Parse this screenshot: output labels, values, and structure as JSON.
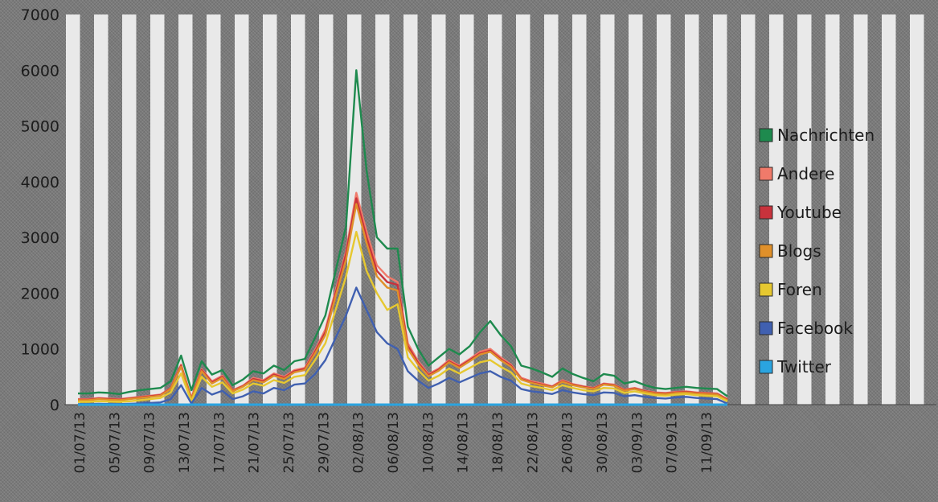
{
  "chart_data": {
    "type": "line",
    "ylim": [
      0,
      7000
    ],
    "yticks": [
      0,
      1000,
      2000,
      3000,
      4000,
      5000,
      6000,
      7000
    ],
    "grid": "none",
    "legend_position": "right",
    "x_tick_labels": [
      "01/07/13",
      "05/07/13",
      "09/07/13",
      "13/07/13",
      "17/07/13",
      "21/07/13",
      "25/07/13",
      "29/07/13",
      "02/08/13",
      "06/08/13",
      "10/08/13",
      "14/08/13",
      "18/08/13",
      "22/08/13",
      "26/08/13",
      "30/08/13",
      "03/09/13",
      "07/09/13",
      "11/09/13"
    ],
    "series": [
      {
        "name": "Nachrichten",
        "color": "#1e8a4e",
        "values": [
          200,
          200,
          220,
          210,
          190,
          230,
          260,
          280,
          300,
          420,
          880,
          260,
          780,
          540,
          620,
          350,
          450,
          600,
          560,
          700,
          620,
          780,
          820,
          1200,
          1600,
          2400,
          3200,
          6000,
          4200,
          3000,
          2800,
          2800,
          1400,
          1000,
          700,
          850,
          1000,
          900,
          1050,
          1300,
          1500,
          1250,
          1050,
          700,
          650,
          580,
          500,
          650,
          550,
          480,
          420,
          550,
          520,
          380,
          420,
          350,
          300,
          280,
          300,
          320,
          300,
          290,
          280,
          150
        ]
      },
      {
        "name": "Andere",
        "color": "#f07a6a",
        "values": [
          100,
          100,
          120,
          110,
          100,
          120,
          140,
          160,
          180,
          300,
          720,
          120,
          640,
          420,
          520,
          260,
          340,
          480,
          440,
          560,
          500,
          620,
          660,
          980,
          1350,
          2050,
          2750,
          3800,
          3100,
          2500,
          2300,
          2200,
          1100,
          780,
          550,
          650,
          800,
          700,
          820,
          950,
          1000,
          850,
          720,
          480,
          420,
          380,
          330,
          440,
          370,
          330,
          300,
          380,
          360,
          270,
          300,
          250,
          220,
          210,
          230,
          240,
          220,
          210,
          200,
          100
        ]
      },
      {
        "name": "Youtube",
        "color": "#c8323c",
        "values": [
          90,
          90,
          110,
          100,
          90,
          110,
          130,
          150,
          170,
          290,
          700,
          110,
          620,
          400,
          500,
          250,
          330,
          460,
          420,
          540,
          480,
          600,
          640,
          950,
          1300,
          2000,
          2700,
          3700,
          3000,
          2400,
          2200,
          2150,
          1050,
          750,
          530,
          630,
          780,
          680,
          800,
          920,
          970,
          820,
          700,
          460,
          400,
          360,
          320,
          420,
          360,
          320,
          290,
          370,
          350,
          260,
          290,
          240,
          210,
          200,
          220,
          230,
          210,
          200,
          190,
          90
        ]
      },
      {
        "name": "Blogs",
        "color": "#e0902a",
        "values": [
          80,
          80,
          100,
          90,
          80,
          100,
          120,
          140,
          160,
          280,
          680,
          100,
          600,
          380,
          480,
          240,
          320,
          440,
          400,
          520,
          460,
          580,
          620,
          920,
          1250,
          1950,
          2600,
          3600,
          2900,
          2300,
          2100,
          2050,
          1000,
          720,
          510,
          610,
          760,
          660,
          780,
          900,
          950,
          800,
          680,
          450,
          390,
          350,
          310,
          410,
          350,
          310,
          280,
          360,
          340,
          250,
          280,
          230,
          200,
          190,
          210,
          220,
          200,
          190,
          180,
          80
        ]
      },
      {
        "name": "Foren",
        "color": "#e6c830",
        "values": [
          50,
          50,
          60,
          55,
          50,
          60,
          80,
          100,
          120,
          220,
          560,
          60,
          500,
          320,
          400,
          200,
          270,
          380,
          340,
          440,
          390,
          500,
          530,
          800,
          1100,
          1700,
          2300,
          3100,
          2400,
          2000,
          1700,
          1800,
          850,
          620,
          430,
          520,
          650,
          560,
          660,
          760,
          800,
          680,
          580,
          380,
          330,
          300,
          260,
          350,
          300,
          260,
          240,
          300,
          290,
          210,
          240,
          200,
          170,
          160,
          180,
          190,
          170,
          160,
          150,
          60
        ]
      },
      {
        "name": "Facebook",
        "color": "#4060b0",
        "values": [
          10,
          10,
          15,
          12,
          10,
          15,
          20,
          30,
          40,
          100,
          350,
          20,
          300,
          180,
          250,
          100,
          150,
          240,
          200,
          300,
          260,
          360,
          380,
          550,
          800,
          1200,
          1600,
          2100,
          1700,
          1300,
          1100,
          1000,
          600,
          430,
          300,
          380,
          480,
          400,
          480,
          560,
          600,
          500,
          430,
          280,
          240,
          220,
          190,
          260,
          220,
          190,
          170,
          220,
          210,
          150,
          170,
          140,
          120,
          110,
          130,
          140,
          120,
          110,
          100,
          20
        ]
      },
      {
        "name": "Twitter",
        "color": "#2aa4e0",
        "values": [
          0,
          0,
          0,
          0,
          0,
          0,
          0,
          0,
          0,
          0,
          0,
          0,
          0,
          0,
          0,
          0,
          0,
          0,
          0,
          0,
          0,
          0,
          0,
          0,
          0,
          0,
          0,
          0,
          0,
          0,
          0,
          0,
          0,
          0,
          0,
          0,
          0,
          0,
          0,
          0,
          0,
          0,
          0,
          0,
          0,
          0,
          0,
          0,
          0,
          0,
          0,
          0,
          0,
          0,
          0,
          0,
          0,
          0,
          0,
          0,
          0,
          0,
          0,
          0
        ]
      }
    ]
  }
}
